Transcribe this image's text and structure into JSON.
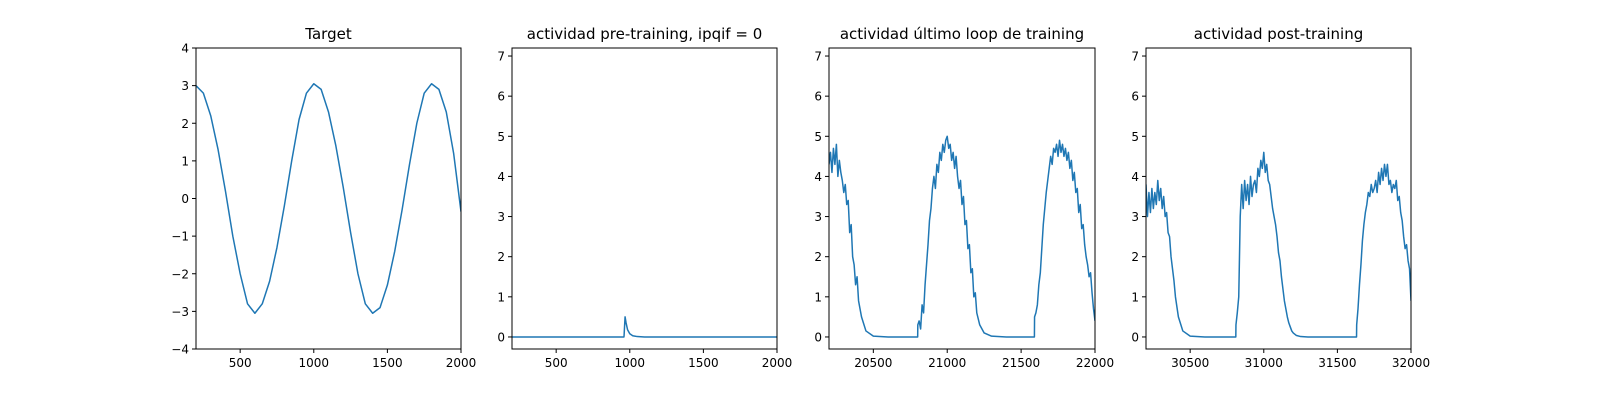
{
  "chart_data": [
    {
      "type": "line",
      "title": "Target",
      "xlabel": "",
      "ylabel": "",
      "xlim": [
        200,
        2000
      ],
      "ylim": [
        -4,
        4
      ],
      "xticks": [
        500,
        1000,
        1500,
        2000
      ],
      "yticks": [
        -4,
        -3,
        -2,
        -1,
        0,
        1,
        2,
        3,
        4
      ],
      "grid": false,
      "series": [
        {
          "x": [
            200,
            250,
            300,
            350,
            400,
            450,
            500,
            550,
            600,
            650,
            700,
            750,
            800,
            850,
            900,
            950,
            1000,
            1050,
            1100,
            1150,
            1200,
            1250,
            1300,
            1350,
            1400,
            1450,
            1500,
            1550,
            1600,
            1650,
            1700,
            1750,
            1800,
            1850,
            1900,
            1950,
            2000
          ],
          "values": [
            3.0,
            2.8,
            2.2,
            1.3,
            0.2,
            -1.0,
            -2.0,
            -2.8,
            -3.05,
            -2.8,
            -2.2,
            -1.3,
            -0.2,
            1.0,
            2.1,
            2.8,
            3.05,
            2.9,
            2.3,
            1.4,
            0.3,
            -0.9,
            -2.0,
            -2.8,
            -3.05,
            -2.9,
            -2.3,
            -1.4,
            -0.3,
            0.9,
            2.0,
            2.8,
            3.05,
            2.9,
            2.3,
            1.2,
            -0.35
          ]
        }
      ]
    },
    {
      "type": "line",
      "title": "actividad pre-training, ipqif = 0",
      "xlabel": "",
      "ylabel": "",
      "xlim": [
        200,
        2000
      ],
      "ylim": [
        -0.3,
        7.2
      ],
      "xticks": [
        500,
        1000,
        1500,
        2000
      ],
      "yticks": [
        0,
        1,
        2,
        3,
        4,
        5,
        6,
        7
      ],
      "grid": false,
      "series": [
        {
          "x": [
            200,
            960,
            961,
            968,
            975,
            985,
            1000,
            1020,
            1050,
            1100,
            2000
          ],
          "values": [
            0,
            0,
            0.02,
            0.5,
            0.35,
            0.18,
            0.08,
            0.03,
            0.01,
            0,
            0
          ]
        }
      ]
    },
    {
      "type": "line",
      "title": "actividad último loop de training",
      "xlabel": "",
      "ylabel": "",
      "xlim": [
        20200,
        22000
      ],
      "ylim": [
        -0.3,
        7.2
      ],
      "xticks": [
        20500,
        21000,
        21500,
        22000
      ],
      "yticks": [
        0,
        1,
        2,
        3,
        4,
        5,
        6,
        7
      ],
      "grid": false,
      "series": [
        {
          "x": [
            20200,
            20210,
            20220,
            20230,
            20240,
            20250,
            20260,
            20270,
            20280,
            20290,
            20300,
            20310,
            20320,
            20330,
            20340,
            20350,
            20360,
            20370,
            20380,
            20390,
            20400,
            20420,
            20450,
            20500,
            20600,
            20700,
            20800,
            20801,
            20810,
            20820,
            20830,
            20840,
            20850,
            20860,
            20870,
            20880,
            20890,
            20900,
            20910,
            20920,
            20930,
            20940,
            20950,
            20960,
            20970,
            20980,
            20990,
            21000,
            21010,
            21020,
            21030,
            21040,
            21050,
            21060,
            21070,
            21080,
            21090,
            21100,
            21110,
            21120,
            21130,
            21140,
            21150,
            21160,
            21170,
            21180,
            21190,
            21200,
            21220,
            21250,
            21300,
            21400,
            21500,
            21590,
            21591,
            21600,
            21610,
            21620,
            21630,
            21640,
            21650,
            21660,
            21670,
            21680,
            21690,
            21700,
            21710,
            21720,
            21730,
            21740,
            21750,
            21760,
            21770,
            21780,
            21790,
            21800,
            21810,
            21820,
            21830,
            21840,
            21850,
            21860,
            21870,
            21880,
            21890,
            21900,
            21910,
            21920,
            21930,
            21940,
            21950,
            21960,
            21970,
            21980,
            21990,
            22000
          ],
          "values": [
            4.3,
            4.6,
            4.1,
            4.7,
            4.3,
            4.8,
            4.0,
            4.4,
            4.1,
            3.9,
            3.6,
            3.8,
            3.3,
            3.4,
            2.6,
            2.8,
            2.0,
            1.8,
            1.3,
            1.5,
            0.9,
            0.5,
            0.15,
            0.02,
            0,
            0,
            0,
            0.3,
            0.4,
            0.2,
            0.8,
            0.6,
            1.3,
            1.8,
            2.3,
            2.9,
            3.2,
            3.7,
            4.0,
            3.7,
            4.3,
            4.1,
            4.6,
            4.4,
            4.8,
            4.6,
            4.9,
            5.0,
            4.7,
            4.8,
            4.4,
            4.6,
            4.2,
            4.5,
            4.0,
            3.7,
            3.9,
            3.3,
            3.5,
            2.8,
            2.9,
            2.2,
            2.3,
            1.6,
            1.7,
            1.0,
            1.1,
            0.6,
            0.3,
            0.1,
            0.02,
            0,
            0,
            0,
            0.5,
            0.6,
            0.8,
            1.3,
            1.6,
            2.2,
            2.8,
            3.2,
            3.6,
            3.9,
            4.2,
            4.5,
            4.3,
            4.7,
            4.6,
            4.8,
            4.5,
            4.9,
            4.6,
            4.8,
            4.5,
            4.7,
            4.4,
            4.6,
            4.2,
            4.4,
            3.9,
            4.1,
            3.6,
            3.7,
            3.1,
            3.3,
            2.7,
            2.8,
            2.3,
            2.0,
            1.8,
            1.5,
            1.6,
            1.1,
            0.7,
            0.4
          ]
        }
      ]
    },
    {
      "type": "line",
      "title": "actividad post-training",
      "xlabel": "",
      "ylabel": "",
      "xlim": [
        30200,
        32000
      ],
      "ylim": [
        -0.3,
        7.2
      ],
      "xticks": [
        30500,
        31000,
        31500,
        32000
      ],
      "yticks": [
        0,
        1,
        2,
        3,
        4,
        5,
        6,
        7
      ],
      "grid": false,
      "series": [
        {
          "x": [
            30200,
            30210,
            30220,
            30230,
            30240,
            30250,
            30260,
            30270,
            30280,
            30290,
            30300,
            30310,
            30320,
            30330,
            30340,
            30350,
            30360,
            30370,
            30380,
            30390,
            30400,
            30420,
            30450,
            30500,
            30600,
            30700,
            30800,
            30810,
            30811,
            30820,
            30830,
            30840,
            30850,
            30860,
            30870,
            30880,
            30890,
            30900,
            30910,
            30920,
            30930,
            30940,
            30950,
            30960,
            30970,
            30980,
            30990,
            31000,
            31010,
            31020,
            31030,
            31040,
            31050,
            31060,
            31070,
            31080,
            31090,
            31100,
            31110,
            31120,
            31130,
            31140,
            31150,
            31160,
            31170,
            31180,
            31190,
            31200,
            31220,
            31250,
            31300,
            31400,
            31500,
            31600,
            31630,
            31631,
            31640,
            31650,
            31660,
            31670,
            31680,
            31690,
            31700,
            31710,
            31720,
            31730,
            31740,
            31750,
            31760,
            31770,
            31780,
            31790,
            31800,
            31810,
            31820,
            31830,
            31840,
            31850,
            31860,
            31870,
            31880,
            31890,
            31900,
            31910,
            31920,
            31930,
            31940,
            31950,
            31960,
            31970,
            31980,
            31990,
            32000
          ],
          "values": [
            3.8,
            3.0,
            3.6,
            3.1,
            3.7,
            3.2,
            3.6,
            3.3,
            3.9,
            3.4,
            3.7,
            3.2,
            3.5,
            3.0,
            3.1,
            2.6,
            2.5,
            2.0,
            1.7,
            1.4,
            1.0,
            0.5,
            0.15,
            0.02,
            0,
            0,
            0,
            0,
            0.3,
            0.6,
            1.0,
            3.0,
            3.8,
            3.2,
            3.9,
            3.4,
            3.8,
            3.3,
            4.0,
            3.5,
            3.8,
            3.9,
            3.6,
            4.2,
            4.0,
            4.4,
            4.2,
            4.6,
            4.1,
            4.3,
            3.9,
            3.8,
            3.5,
            3.2,
            3.0,
            2.8,
            2.5,
            2.1,
            1.9,
            1.5,
            1.2,
            0.9,
            0.7,
            0.5,
            0.35,
            0.25,
            0.15,
            0.1,
            0.04,
            0.01,
            0,
            0,
            0,
            0,
            0,
            0.3,
            0.7,
            1.3,
            1.8,
            2.4,
            2.8,
            3.1,
            3.3,
            3.6,
            3.5,
            3.8,
            3.6,
            3.7,
            3.9,
            3.6,
            4.1,
            3.8,
            4.2,
            3.9,
            4.3,
            4.0,
            4.3,
            3.8,
            3.9,
            3.6,
            3.8,
            3.7,
            3.9,
            3.4,
            3.5,
            3.1,
            2.9,
            2.5,
            2.2,
            2.3,
            1.9,
            1.7,
            0.9
          ]
        }
      ]
    }
  ]
}
